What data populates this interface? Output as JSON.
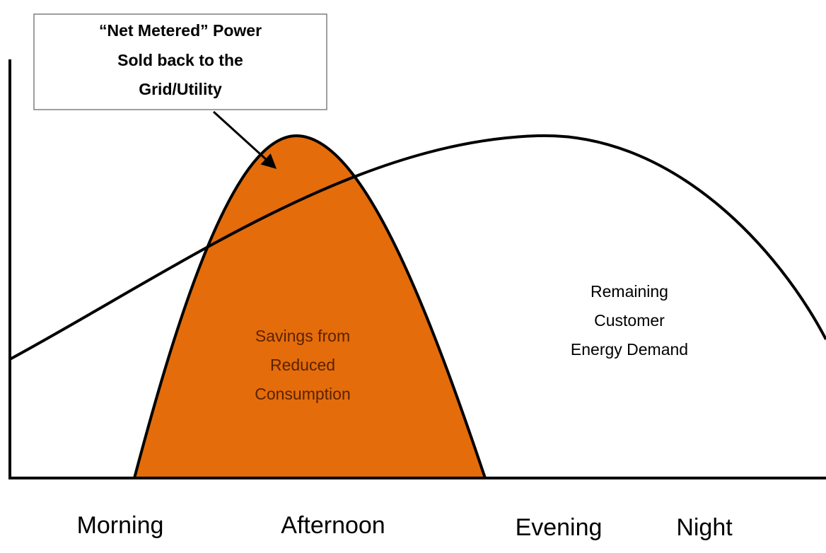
{
  "callout": {
    "lines": [
      "“Net Metered” Power",
      "Sold back to the",
      "Grid/Utility"
    ]
  },
  "labels": {
    "savings": [
      "Savings from",
      "Reduced",
      "Consumption"
    ],
    "remaining": [
      "Remaining",
      "Customer",
      "Energy Demand"
    ]
  },
  "x_labels": [
    "Morning",
    "Afternoon",
    "Evening",
    "Night"
  ]
}
